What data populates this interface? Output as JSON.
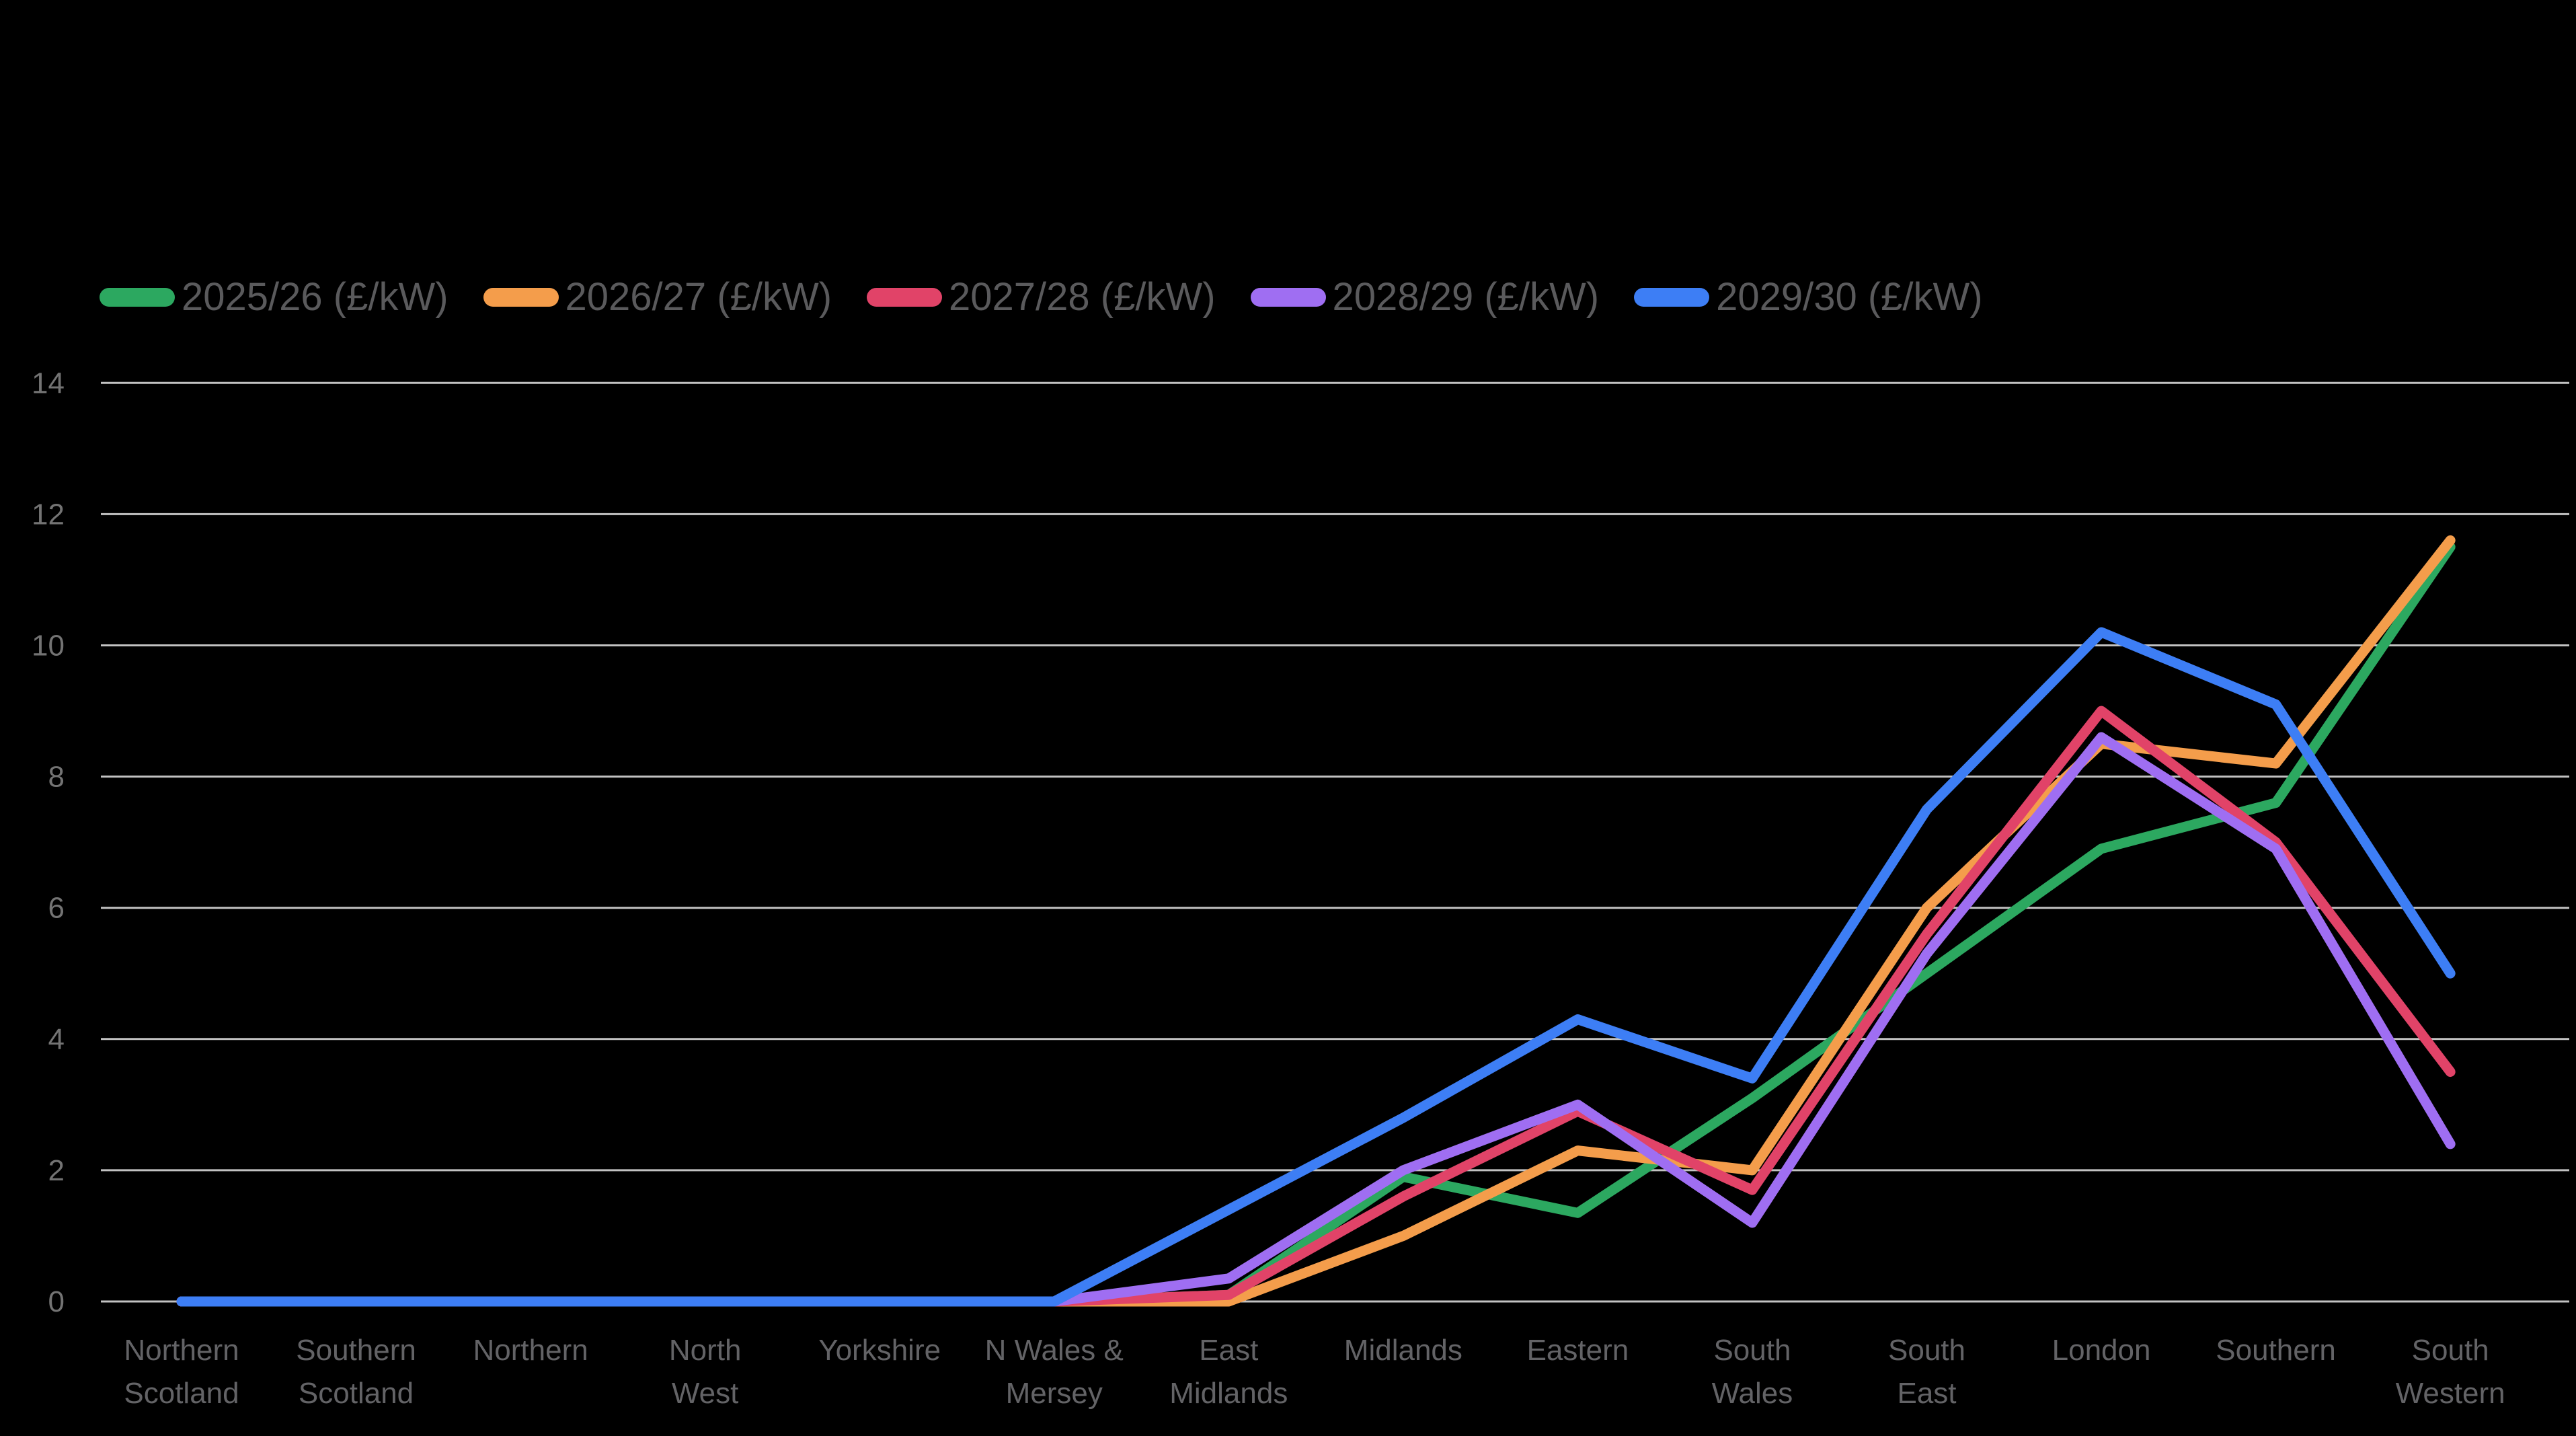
{
  "legend": {
    "items": [
      {
        "label": "2025/26 (£/kW)",
        "color": "#2ca860"
      },
      {
        "label": "2026/27 (£/kW)",
        "color": "#f49d4b"
      },
      {
        "label": "2027/28 (£/kW)",
        "color": "#e14368"
      },
      {
        "label": "2028/29 (£/kW)",
        "color": "#9f6ef2"
      },
      {
        "label": "2029/30 (£/kW)",
        "color": "#3d7ef5"
      }
    ]
  },
  "chart_data": {
    "type": "line",
    "title": "",
    "xlabel": "",
    "ylabel": "",
    "ylim": [
      0,
      14
    ],
    "yticks": [
      0,
      2,
      4,
      6,
      8,
      10,
      12,
      14
    ],
    "grid": true,
    "legend_position": "top-left",
    "background_color": "#000000",
    "gridline_color": "#c2c2c2",
    "tick_text_color": "#737373",
    "xlabel_text_color": "#636366",
    "legend_text_color": "#5a5a5c",
    "categories": [
      "Northern Scotland",
      "Southern Scotland",
      "Northern",
      "North West",
      "Yorkshire",
      "N Wales & Mersey",
      "East Midlands",
      "Midlands",
      "Eastern",
      "South Wales",
      "South East",
      "London",
      "Southern",
      "South Western"
    ],
    "category_label_lines": [
      [
        "Northern",
        "Scotland"
      ],
      [
        "Southern",
        "Scotland"
      ],
      [
        "Northern"
      ],
      [
        "North",
        "West"
      ],
      [
        "Yorkshire"
      ],
      [
        "N Wales &",
        "Mersey"
      ],
      [
        "East",
        "Midlands"
      ],
      [
        "Midlands"
      ],
      [
        "Eastern"
      ],
      [
        "South",
        "Wales"
      ],
      [
        "South",
        "East"
      ],
      [
        "London"
      ],
      [
        "Southern"
      ],
      [
        "South",
        "Western"
      ]
    ],
    "series": [
      {
        "name": "2025/26 (£/kW)",
        "color": "#2ca860",
        "values": [
          0,
          0,
          0,
          0,
          0,
          0,
          0.1,
          1.9,
          1.35,
          3.1,
          5.0,
          6.9,
          7.6,
          11.5
        ]
      },
      {
        "name": "2026/27 (£/kW)",
        "color": "#f49d4b",
        "values": [
          0,
          0,
          0,
          0,
          0,
          0,
          0,
          1.0,
          2.3,
          2.0,
          6.0,
          8.5,
          8.2,
          11.6
        ]
      },
      {
        "name": "2027/28 (£/kW)",
        "color": "#e14368",
        "values": [
          0,
          0,
          0,
          0,
          0,
          0,
          0.1,
          1.6,
          2.9,
          1.7,
          5.6,
          9.0,
          7.0,
          3.5
        ]
      },
      {
        "name": "2028/29 (£/kW)",
        "color": "#9f6ef2",
        "values": [
          0,
          0,
          0,
          0,
          0,
          0,
          0.35,
          2.0,
          3.0,
          1.2,
          5.3,
          8.6,
          6.9,
          2.4
        ]
      },
      {
        "name": "2029/30 (£/kW)",
        "color": "#3d7ef5",
        "values": [
          0,
          0,
          0,
          0,
          0,
          0,
          1.4,
          2.8,
          4.3,
          3.4,
          7.5,
          10.2,
          9.1,
          5.0
        ]
      }
    ]
  }
}
